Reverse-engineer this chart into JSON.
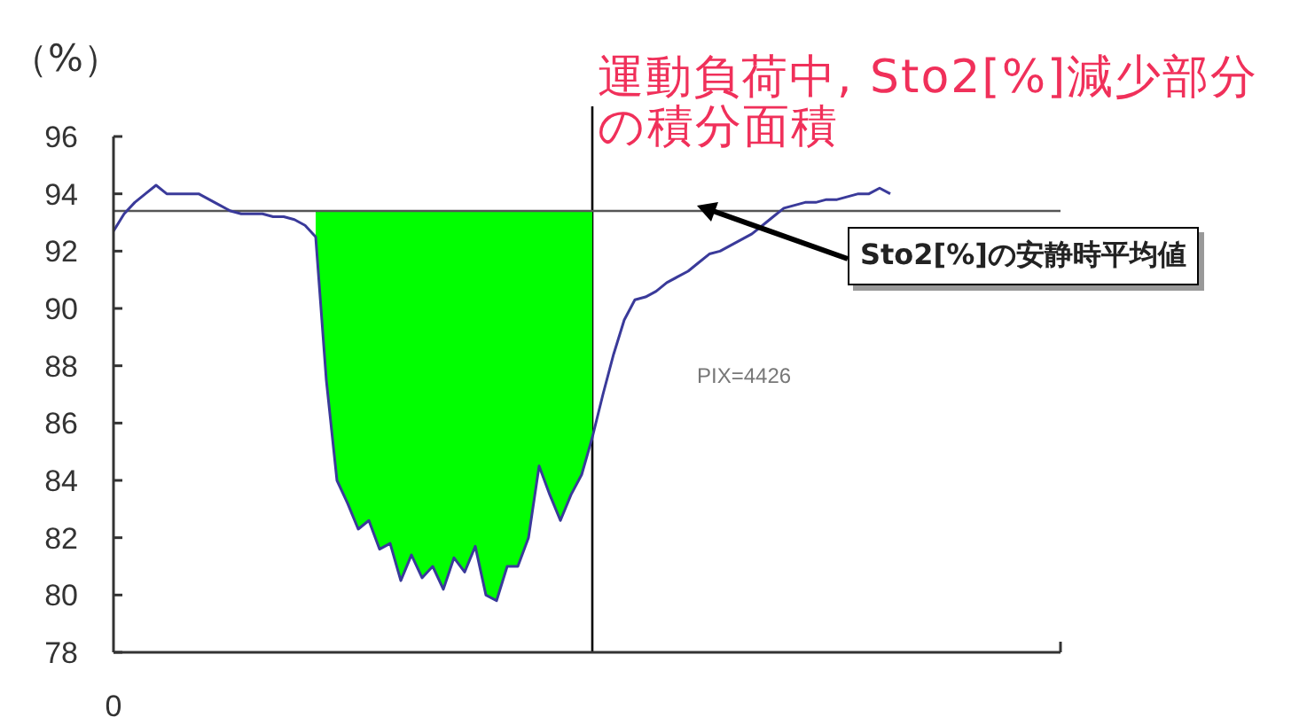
{
  "chart_data": {
    "type": "line",
    "ylabel": "（%）",
    "categories": [
      "0",
      null,
      null,
      null,
      null,
      null,
      null,
      null,
      null,
      null,
      null,
      null,
      null,
      null,
      null,
      null,
      null,
      null,
      null,
      null,
      null,
      null,
      null,
      null,
      null,
      null,
      null,
      null,
      null,
      null,
      null,
      null,
      null,
      null,
      null,
      null,
      null,
      null,
      null,
      null,
      null,
      null,
      null,
      null,
      null,
      null,
      null,
      null,
      null,
      null,
      null,
      null,
      null,
      null,
      null,
      null,
      null,
      null,
      null,
      null,
      null,
      null,
      null,
      null,
      null,
      null,
      null,
      null,
      null,
      null,
      null,
      null,
      null,
      null,
      null,
      null,
      null,
      null,
      null,
      null,
      null,
      null,
      null,
      null,
      null,
      null,
      null,
      null,
      null,
      null
    ],
    "series": [
      {
        "color": "#3a3a9a",
        "values": [
          92.7,
          93.3,
          93.7,
          94.0,
          94.3,
          94.0,
          94.0,
          94.0,
          94.0,
          93.8,
          93.6,
          93.4,
          93.3,
          93.3,
          93.3,
          93.2,
          93.2,
          93.1,
          92.9,
          92.5,
          87.5,
          84.0,
          83.2,
          82.3,
          82.6,
          81.6,
          81.8,
          80.5,
          81.4,
          80.6,
          81.0,
          80.2,
          81.3,
          80.8,
          81.7,
          80.0,
          79.8,
          81.0,
          81.0,
          82.0,
          84.5,
          83.5,
          82.6,
          83.5,
          84.2,
          85.5,
          87.0,
          88.4,
          89.6,
          90.3,
          90.4,
          90.6,
          90.9,
          91.1,
          91.3,
          91.6,
          91.9,
          92.0,
          92.2,
          92.4,
          92.6,
          92.9,
          93.2,
          93.5,
          93.6,
          93.7,
          93.7,
          93.8,
          93.8,
          93.9,
          94.0,
          94.0,
          94.2,
          94.0,
          null,
          null,
          null,
          null,
          null,
          null,
          null,
          null,
          null,
          null,
          null,
          null,
          null,
          null,
          null,
          null
        ]
      },
      {
        "type": "area",
        "color": "#00ff00",
        "values": [
          null,
          null,
          null,
          null,
          null,
          null,
          null,
          null,
          null,
          null,
          null,
          null,
          null,
          null,
          null,
          null,
          null,
          null,
          null,
          93.4,
          93.4,
          93.4,
          93.4,
          93.4,
          93.4,
          93.4,
          93.4,
          93.4,
          93.4,
          93.4,
          93.4,
          93.4,
          93.4,
          93.4,
          93.4,
          93.4,
          93.4,
          93.4,
          93.4,
          93.4,
          93.4,
          93.4,
          93.4,
          93.4,
          93.4,
          93.4,
          null,
          null,
          null,
          null,
          null,
          null,
          null,
          null,
          null,
          null,
          null,
          null,
          null,
          null,
          null,
          null,
          null,
          null,
          null,
          null,
          null,
          null,
          null,
          null,
          null,
          null,
          null,
          null,
          null,
          null,
          null,
          null,
          null,
          null,
          null,
          null,
          null,
          null,
          null,
          null,
          null,
          null,
          null,
          null
        ]
      }
    ],
    "ylim": [
      78,
      96
    ],
    "yticks": [
      78,
      80,
      82,
      84,
      86,
      88,
      90,
      92,
      94,
      96
    ],
    "ref_lines": [
      {
        "axis": "y",
        "value": 93.4,
        "color": "#555555"
      }
    ],
    "annotations": [
      "運動負荷中, Sto2[%]減少部分の積分面積",
      "Sto2[%]の安静時平均値",
      "PIX=4426"
    ]
  }
}
